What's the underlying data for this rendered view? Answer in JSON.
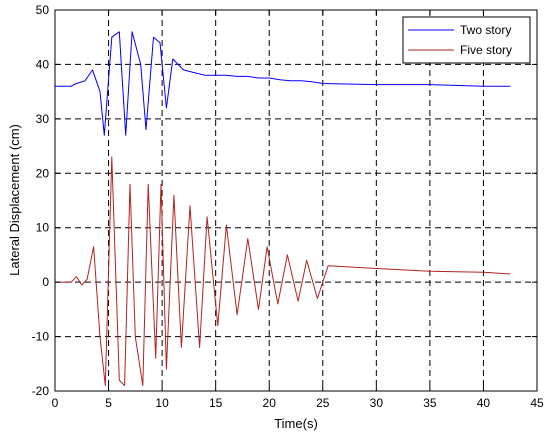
{
  "chart_data": {
    "type": "line",
    "title": "",
    "xlabel": "Time(s)",
    "ylabel": "Lateral Displacement (cm)",
    "xlim": [
      0,
      45
    ],
    "ylim": [
      -20,
      50
    ],
    "xticks": [
      0,
      5,
      10,
      15,
      20,
      25,
      30,
      35,
      40,
      45
    ],
    "yticks": [
      -20,
      -10,
      0,
      10,
      20,
      30,
      40,
      50
    ],
    "x_tick_labels": [
      "0",
      "5",
      "10",
      "15",
      "20",
      "25",
      "30",
      "35",
      "40",
      "45"
    ],
    "y_tick_labels": [
      "-20",
      "-10",
      "0",
      "10",
      "20",
      "30",
      "40",
      "50"
    ],
    "grid": true,
    "grid_style": "dashed",
    "legend_position": "top-right",
    "series": [
      {
        "name": "Two story",
        "color": "#0000ff",
        "keypoints": [
          [
            0,
            36
          ],
          [
            1.5,
            36
          ],
          [
            2.0,
            36.5
          ],
          [
            2.8,
            37
          ],
          [
            3.5,
            39
          ],
          [
            4.2,
            35
          ],
          [
            4.6,
            27
          ],
          [
            5.3,
            45
          ],
          [
            6.0,
            46
          ],
          [
            6.6,
            27
          ],
          [
            7.2,
            46
          ],
          [
            8.0,
            40
          ],
          [
            8.5,
            28
          ],
          [
            9.2,
            45
          ],
          [
            9.8,
            44
          ],
          [
            10.4,
            32
          ],
          [
            11.0,
            41
          ],
          [
            12.0,
            39
          ],
          [
            13.0,
            38.5
          ],
          [
            14.0,
            38
          ],
          [
            15.0,
            38
          ],
          [
            16.0,
            38
          ],
          [
            17.0,
            37.8
          ],
          [
            18.0,
            37.8
          ],
          [
            19.0,
            37.5
          ],
          [
            20.0,
            37.5
          ],
          [
            21.0,
            37.2
          ],
          [
            22.0,
            37
          ],
          [
            23.0,
            37
          ],
          [
            24.0,
            36.8
          ],
          [
            25.0,
            36.5
          ],
          [
            30.0,
            36.3
          ],
          [
            35.0,
            36.3
          ],
          [
            40.0,
            36
          ],
          [
            42.5,
            36
          ]
        ]
      },
      {
        "name": "Five story",
        "color": "#b22222",
        "keypoints": [
          [
            0,
            0
          ],
          [
            1.5,
            0
          ],
          [
            2.0,
            1
          ],
          [
            2.5,
            -0.5
          ],
          [
            3.0,
            0.5
          ],
          [
            3.6,
            6.5
          ],
          [
            4.2,
            -10
          ],
          [
            4.7,
            -19
          ],
          [
            5.3,
            23
          ],
          [
            6.0,
            -18
          ],
          [
            6.5,
            -19
          ],
          [
            7.0,
            18
          ],
          [
            7.5,
            -10
          ],
          [
            8.2,
            -19
          ],
          [
            8.7,
            18
          ],
          [
            9.4,
            -14
          ],
          [
            9.9,
            18
          ],
          [
            10.4,
            -16
          ],
          [
            11.1,
            16
          ],
          [
            11.8,
            -12
          ],
          [
            12.6,
            14
          ],
          [
            13.5,
            -12
          ],
          [
            14.2,
            12
          ],
          [
            15.2,
            -8
          ],
          [
            16.0,
            10.5
          ],
          [
            17.0,
            -6
          ],
          [
            18.0,
            8
          ],
          [
            19.0,
            -5
          ],
          [
            19.8,
            6.5
          ],
          [
            20.8,
            -4
          ],
          [
            21.7,
            5
          ],
          [
            22.7,
            -3.5
          ],
          [
            23.5,
            4
          ],
          [
            24.5,
            -3
          ],
          [
            25.5,
            3
          ],
          [
            30.0,
            2.5
          ],
          [
            35.0,
            2
          ],
          [
            40.0,
            1.8
          ],
          [
            42.5,
            1.5
          ]
        ]
      }
    ]
  }
}
